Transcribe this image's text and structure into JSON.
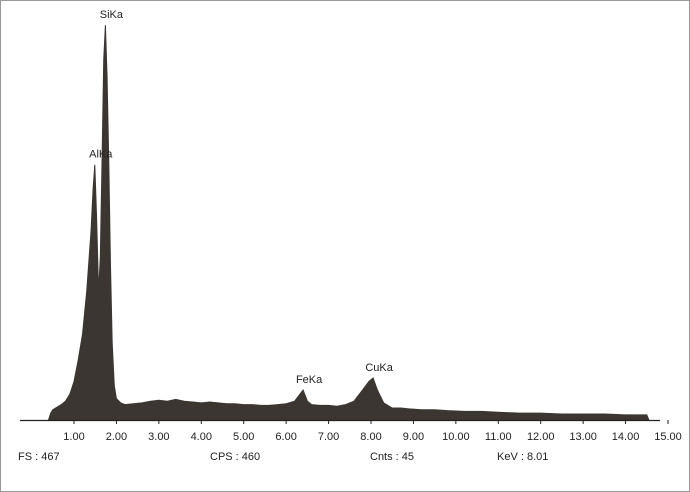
{
  "chart_data": {
    "type": "area",
    "x": [
      0.4,
      0.45,
      0.5,
      0.6,
      0.7,
      0.8,
      0.9,
      1.0,
      1.1,
      1.2,
      1.3,
      1.4,
      1.45,
      1.49,
      1.53,
      1.58,
      1.62,
      1.66,
      1.7,
      1.74,
      1.78,
      1.82,
      1.86,
      1.9,
      1.95,
      2.0,
      2.1,
      2.2,
      2.4,
      2.6,
      2.8,
      3.0,
      3.2,
      3.4,
      3.6,
      3.8,
      4.0,
      4.2,
      4.4,
      4.6,
      4.8,
      5.0,
      5.2,
      5.4,
      5.6,
      5.8,
      6.0,
      6.2,
      6.4,
      6.5,
      6.6,
      6.8,
      7.0,
      7.2,
      7.4,
      7.6,
      7.8,
      7.95,
      8.05,
      8.15,
      8.3,
      8.5,
      8.7,
      8.9,
      9.2,
      9.5,
      9.8,
      10.2,
      10.6,
      11.0,
      11.5,
      12.0,
      12.5,
      13.0,
      13.5,
      14.0,
      14.5,
      14.55
    ],
    "values": [
      0,
      8,
      12,
      15,
      18,
      22,
      30,
      45,
      70,
      100,
      150,
      220,
      270,
      298,
      240,
      150,
      190,
      300,
      420,
      461,
      400,
      300,
      180,
      90,
      40,
      25,
      20,
      18,
      19,
      20,
      22,
      23,
      22,
      24,
      22,
      21,
      20,
      21,
      20,
      19,
      19,
      18,
      18,
      17,
      17,
      18,
      19,
      22,
      35,
      22,
      18,
      17,
      17,
      16,
      18,
      22,
      35,
      45,
      49,
      35,
      20,
      14,
      14,
      13,
      12,
      12,
      11,
      10,
      10,
      9,
      8,
      8,
      7,
      7,
      7,
      6,
      6,
      0
    ],
    "color": "#3b3631",
    "xlim": [
      0.25,
      15.0
    ],
    "ylim": [
      0,
      467
    ],
    "xticks": [
      {
        "value": 1,
        "label": "1.00"
      },
      {
        "value": 2,
        "label": "2.00"
      },
      {
        "value": 3,
        "label": "3.00"
      },
      {
        "value": 4,
        "label": "4.00"
      },
      {
        "value": 5,
        "label": "5.00"
      },
      {
        "value": 6,
        "label": "6.00"
      },
      {
        "value": 7,
        "label": "7.00"
      },
      {
        "value": 8,
        "label": "8.00"
      },
      {
        "value": 9,
        "label": "9.00"
      },
      {
        "value": 10,
        "label": "10.00"
      },
      {
        "value": 11,
        "label": "11.00"
      },
      {
        "value": 12,
        "label": "12.00"
      },
      {
        "value": 13,
        "label": "13.00"
      },
      {
        "value": 14,
        "label": "14.00"
      },
      {
        "value": 15,
        "label": "15.00"
      }
    ],
    "annotations": [
      {
        "text": "SiKa",
        "x": 1.74,
        "y": 461
      },
      {
        "text": "AlKa",
        "x": 1.49,
        "y": 298
      },
      {
        "text": "FeKa",
        "x": 6.4,
        "y": 35
      },
      {
        "text": "CuKa",
        "x": 8.05,
        "y": 49
      }
    ],
    "footer": [
      "FS : 467",
      "CPS : 460",
      "Cnts : 45",
      "KeV : 8.01"
    ]
  }
}
